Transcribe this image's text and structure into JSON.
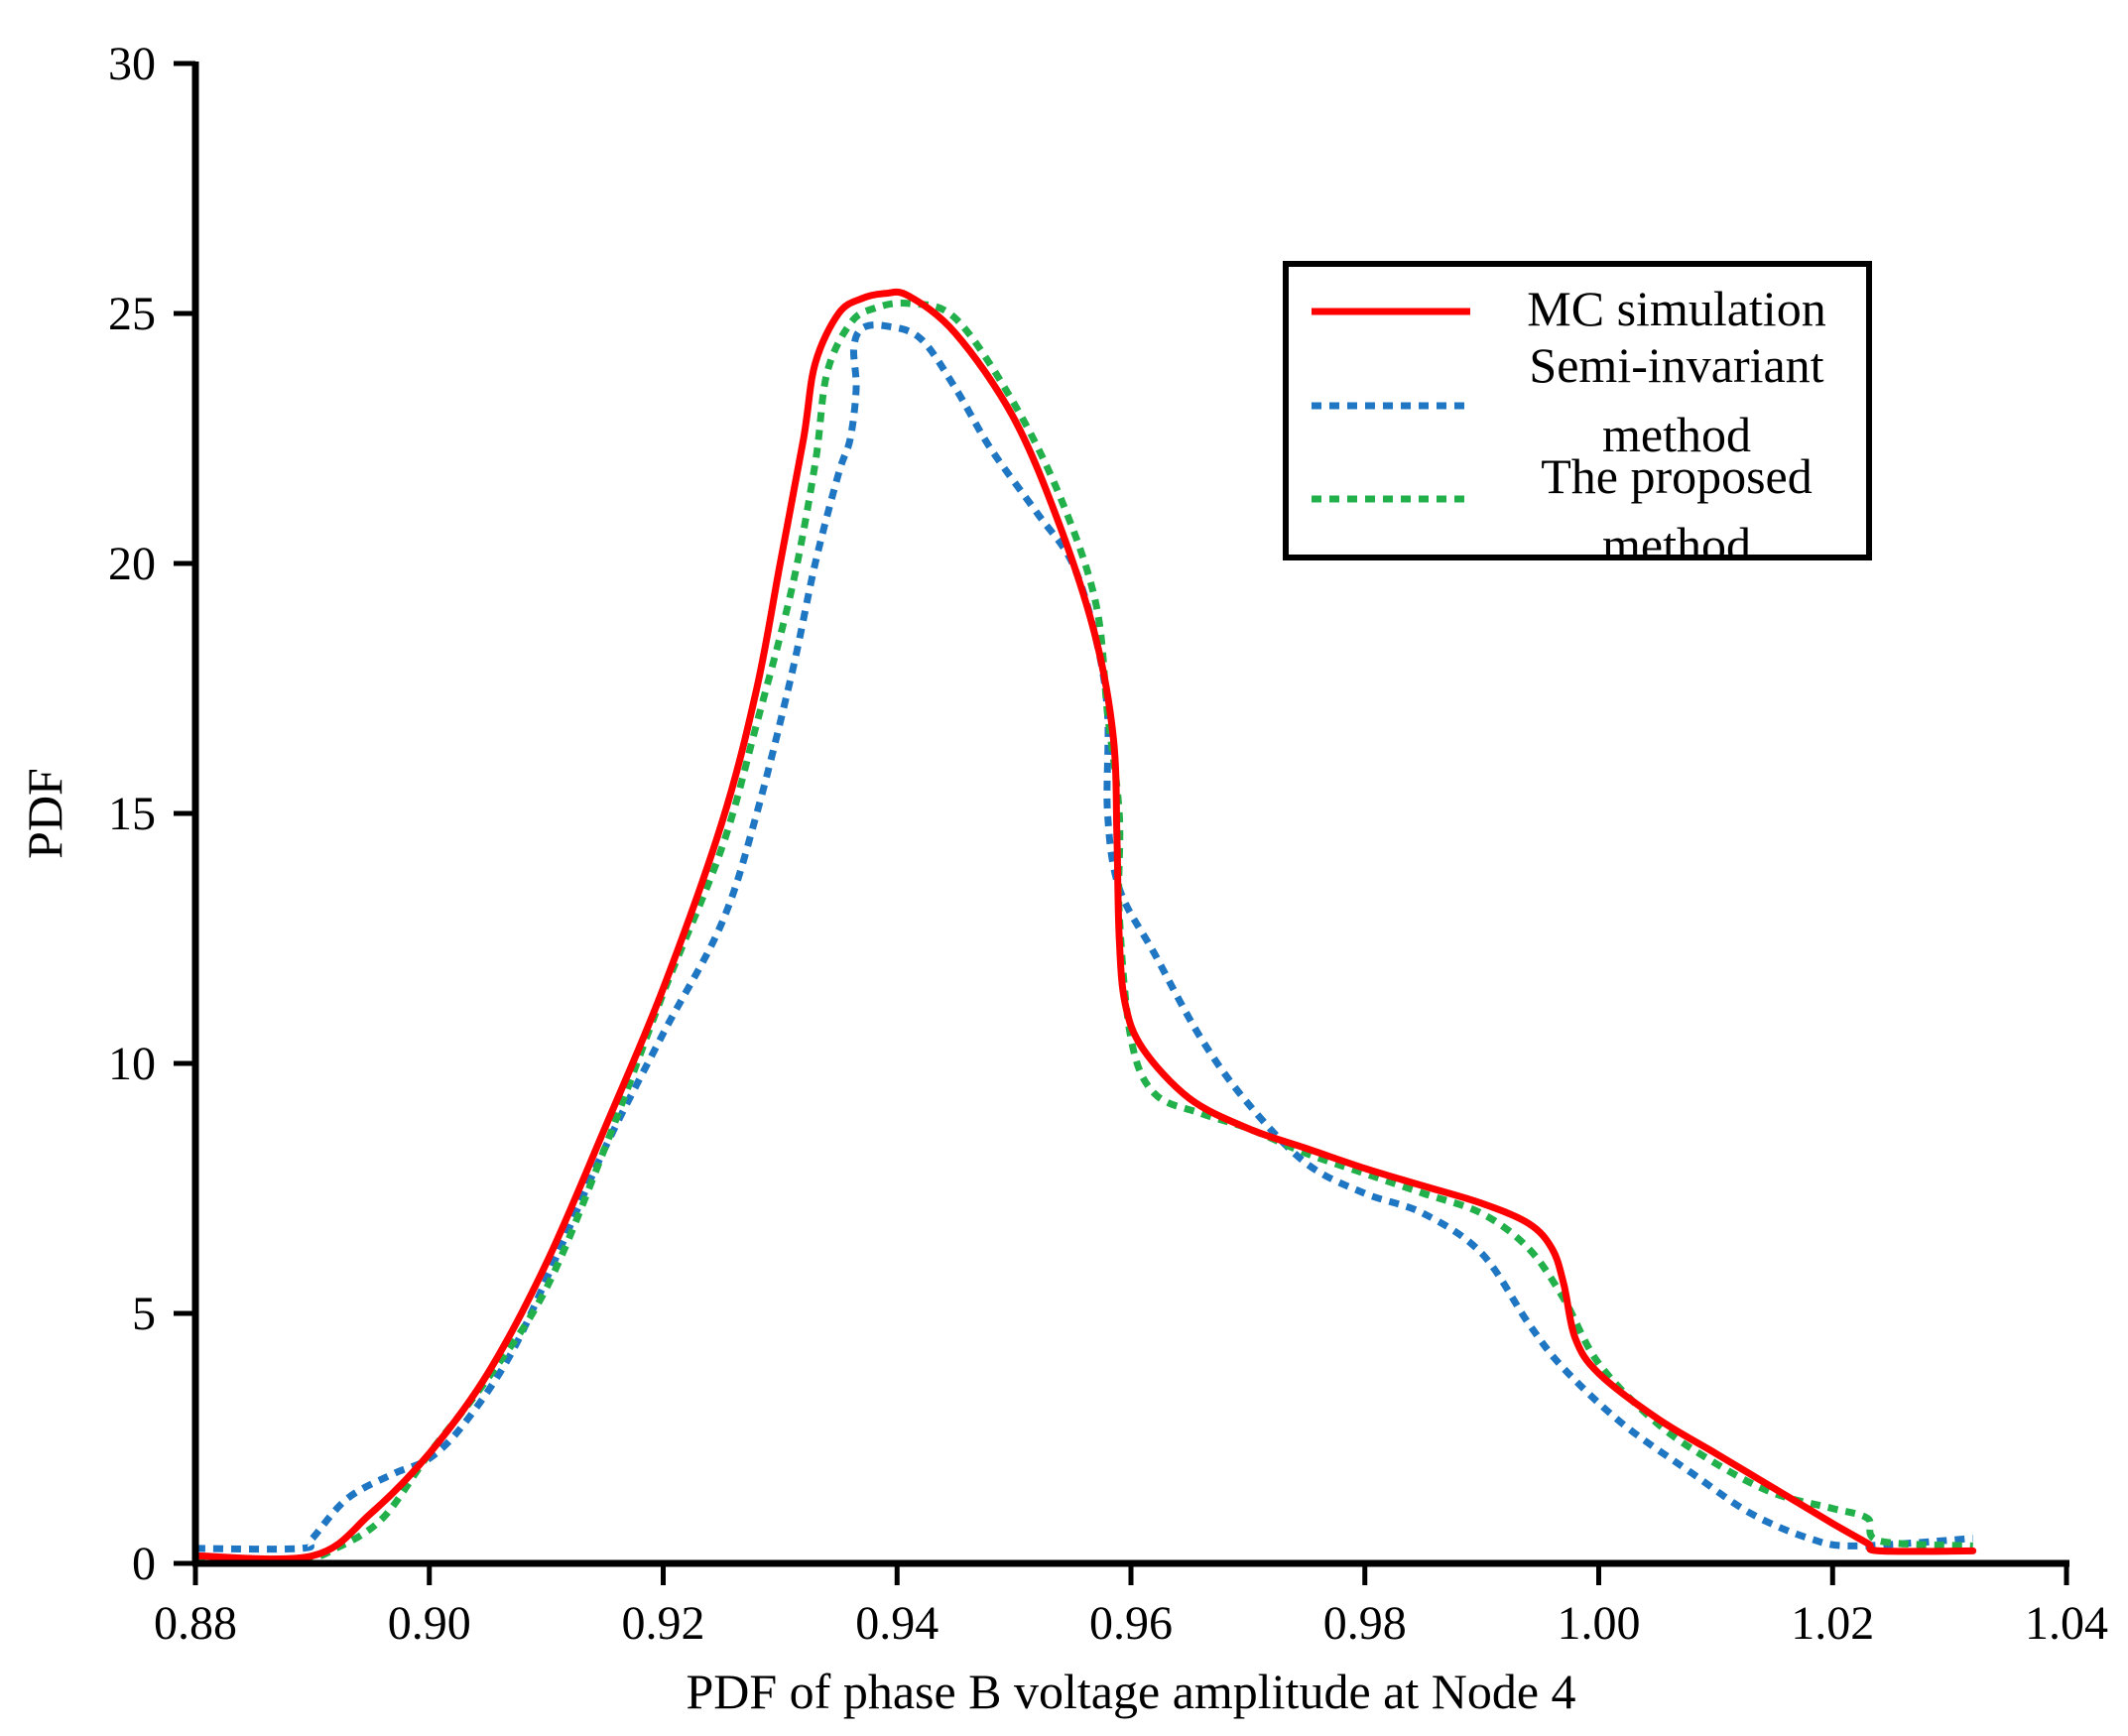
{
  "chart_data": {
    "type": "line",
    "title": "",
    "xlabel": "PDF of phase B voltage amplitude at Node 4",
    "ylabel": "PDF",
    "xlim": [
      0.88,
      1.04
    ],
    "ylim": [
      0,
      30
    ],
    "xticks": [
      "0.88",
      "0.90",
      "0.92",
      "0.94",
      "0.96",
      "0.98",
      "1.00",
      "1.02",
      "1.04"
    ],
    "yticks": [
      "0",
      "5",
      "10",
      "15",
      "20",
      "25",
      "30"
    ],
    "grid": false,
    "legend_position": "top-right",
    "series": [
      {
        "name": "MC simulation",
        "color": "#ff0000",
        "style": "solid",
        "points": [
          [
            0.88,
            0.15
          ],
          [
            0.89,
            0.15
          ],
          [
            0.895,
            1.0
          ],
          [
            0.9,
            2.2
          ],
          [
            0.905,
            3.8
          ],
          [
            0.91,
            6.0
          ],
          [
            0.915,
            8.7
          ],
          [
            0.92,
            11.5
          ],
          [
            0.925,
            14.8
          ],
          [
            0.928,
            17.5
          ],
          [
            0.93,
            20.0
          ],
          [
            0.932,
            22.5
          ],
          [
            0.933,
            24.0
          ],
          [
            0.935,
            25.0
          ],
          [
            0.937,
            25.3
          ],
          [
            0.939,
            25.4
          ],
          [
            0.941,
            25.35
          ],
          [
            0.945,
            24.6
          ],
          [
            0.95,
            22.9
          ],
          [
            0.954,
            20.7
          ],
          [
            0.957,
            18.5
          ],
          [
            0.9585,
            16.5
          ],
          [
            0.9588,
            14.5
          ],
          [
            0.959,
            12.5
          ],
          [
            0.9595,
            11.2
          ],
          [
            0.961,
            10.3
          ],
          [
            0.965,
            9.3
          ],
          [
            0.97,
            8.7
          ],
          [
            0.975,
            8.3
          ],
          [
            0.98,
            7.9
          ],
          [
            0.985,
            7.55
          ],
          [
            0.99,
            7.2
          ],
          [
            0.994,
            6.8
          ],
          [
            0.996,
            6.3
          ],
          [
            0.997,
            5.6
          ],
          [
            0.998,
            4.5
          ],
          [
            1.0,
            3.8
          ],
          [
            1.005,
            2.9
          ],
          [
            1.01,
            2.2
          ],
          [
            1.015,
            1.5
          ],
          [
            1.02,
            0.8
          ],
          [
            1.023,
            0.4
          ],
          [
            1.024,
            0.25
          ],
          [
            1.032,
            0.25
          ]
        ]
      },
      {
        "name": "Semi-invariant method",
        "color": "#1f77c4",
        "style": "dotted",
        "points": [
          [
            0.88,
            0.3
          ],
          [
            0.889,
            0.3
          ],
          [
            0.89,
            0.5
          ],
          [
            0.893,
            1.3
          ],
          [
            0.897,
            1.8
          ],
          [
            0.9,
            2.1
          ],
          [
            0.903,
            2.8
          ],
          [
            0.907,
            4.2
          ],
          [
            0.911,
            6.2
          ],
          [
            0.915,
            8.3
          ],
          [
            0.92,
            10.6
          ],
          [
            0.925,
            12.8
          ],
          [
            0.928,
            15.0
          ],
          [
            0.931,
            17.8
          ],
          [
            0.933,
            20.0
          ],
          [
            0.935,
            21.8
          ],
          [
            0.936,
            22.5
          ],
          [
            0.9365,
            23.5
          ],
          [
            0.9363,
            24.3
          ],
          [
            0.937,
            24.7
          ],
          [
            0.939,
            24.75
          ],
          [
            0.942,
            24.5
          ],
          [
            0.945,
            23.5
          ],
          [
            0.948,
            22.3
          ],
          [
            0.952,
            21.0
          ],
          [
            0.955,
            20.0
          ],
          [
            0.957,
            18.5
          ],
          [
            0.958,
            17.0
          ],
          [
            0.958,
            15.0
          ],
          [
            0.959,
            13.5
          ],
          [
            0.962,
            12.2
          ],
          [
            0.966,
            10.5
          ],
          [
            0.97,
            9.2
          ],
          [
            0.975,
            8.0
          ],
          [
            0.98,
            7.4
          ],
          [
            0.985,
            7.0
          ],
          [
            0.99,
            6.2
          ],
          [
            0.994,
            4.8
          ],
          [
            0.997,
            3.9
          ],
          [
            1.002,
            2.8
          ],
          [
            1.008,
            1.8
          ],
          [
            1.013,
            1.0
          ],
          [
            1.018,
            0.5
          ],
          [
            1.022,
            0.35
          ],
          [
            1.032,
            0.5
          ]
        ]
      },
      {
        "name": "The proposed method",
        "color": "#22b04b",
        "style": "dotted",
        "points": [
          [
            0.88,
            0.1
          ],
          [
            0.889,
            0.1
          ],
          [
            0.892,
            0.3
          ],
          [
            0.896,
            0.9
          ],
          [
            0.9,
            2.2
          ],
          [
            0.905,
            3.7
          ],
          [
            0.91,
            5.5
          ],
          [
            0.915,
            8.3
          ],
          [
            0.92,
            11.4
          ],
          [
            0.925,
            14.3
          ],
          [
            0.928,
            16.8
          ],
          [
            0.931,
            19.5
          ],
          [
            0.933,
            22.0
          ],
          [
            0.934,
            23.8
          ],
          [
            0.936,
            24.8
          ],
          [
            0.938,
            25.1
          ],
          [
            0.941,
            25.2
          ],
          [
            0.945,
            24.9
          ],
          [
            0.95,
            23.2
          ],
          [
            0.954,
            21.3
          ],
          [
            0.957,
            19.2
          ],
          [
            0.958,
            17.0
          ],
          [
            0.959,
            15.0
          ],
          [
            0.959,
            13.0
          ],
          [
            0.96,
            10.5
          ],
          [
            0.962,
            9.4
          ],
          [
            0.966,
            9.0
          ],
          [
            0.97,
            8.7
          ],
          [
            0.975,
            8.2
          ],
          [
            0.98,
            7.8
          ],
          [
            0.985,
            7.4
          ],
          [
            0.99,
            7.0
          ],
          [
            0.994,
            6.3
          ],
          [
            0.997,
            5.3
          ],
          [
            1.0,
            4.0
          ],
          [
            1.005,
            2.8
          ],
          [
            1.01,
            2.0
          ],
          [
            1.015,
            1.4
          ],
          [
            1.02,
            1.1
          ],
          [
            1.023,
            0.9
          ],
          [
            1.024,
            0.45
          ],
          [
            1.032,
            0.35
          ]
        ]
      }
    ]
  },
  "legend": {
    "entries": [
      {
        "series": 0,
        "lines": [
          "MC simulation"
        ]
      },
      {
        "series": 1,
        "lines": [
          "Semi-invariant",
          "method"
        ]
      },
      {
        "series": 2,
        "lines": [
          "The proposed",
          "method"
        ]
      }
    ]
  }
}
